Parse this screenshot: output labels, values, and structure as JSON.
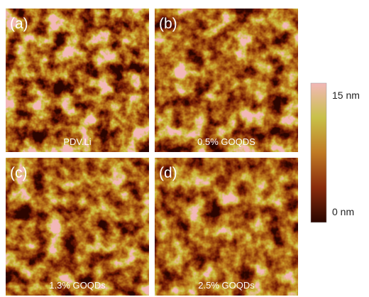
{
  "panels": [
    {
      "letter": "(a)",
      "caption": "PDV.Li"
    },
    {
      "letter": "(b)",
      "caption": "0.5% GOQDS"
    },
    {
      "letter": "(c)",
      "caption": "1.3% GOQDs"
    },
    {
      "letter": "(d)",
      "caption": "2.5% GOQDs"
    }
  ],
  "colorbar": {
    "max_label": "15 nm",
    "min_label": "0 nm"
  }
}
